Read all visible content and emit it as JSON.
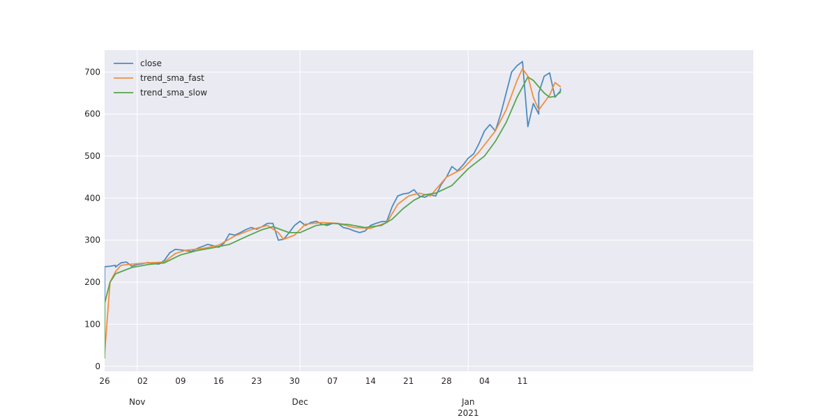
{
  "chart_data": {
    "type": "line",
    "title": "",
    "xlabel": "",
    "ylabel": "",
    "ylim": [
      -12,
      752
    ],
    "grid": true,
    "legend_position": "top-left",
    "x_range": [
      "2020-10-26",
      "2021-01-15"
    ],
    "y_ticks": [
      0,
      100,
      200,
      300,
      400,
      500,
      600,
      700
    ],
    "x_ticks": [
      {
        "date": "2020-10-26",
        "label": "26"
      },
      {
        "date": "2020-11-02",
        "label": "02"
      },
      {
        "date": "2020-11-09",
        "label": "09"
      },
      {
        "date": "2020-11-16",
        "label": "16"
      },
      {
        "date": "2020-11-23",
        "label": "23"
      },
      {
        "date": "2020-11-30",
        "label": "30"
      },
      {
        "date": "2020-12-07",
        "label": "07"
      },
      {
        "date": "2020-12-14",
        "label": "14"
      },
      {
        "date": "2020-12-21",
        "label": "21"
      },
      {
        "date": "2020-12-28",
        "label": "28"
      },
      {
        "date": "2021-01-04",
        "label": "04"
      },
      {
        "date": "2021-01-11",
        "label": "11"
      }
    ],
    "x_major_ticks": [
      {
        "date": "2020-11-01",
        "label": "Nov",
        "sublabel": ""
      },
      {
        "date": "2020-12-01",
        "label": "Dec",
        "sublabel": ""
      },
      {
        "date": "2021-01-01",
        "label": "Jan",
        "sublabel": "2021"
      }
    ],
    "series": [
      {
        "name": "close",
        "color": "#4c8bbf",
        "points": [
          [
            "2020-10-26",
            30
          ],
          [
            "2020-10-26",
            237
          ],
          [
            "2020-10-27",
            238
          ],
          [
            "2020-10-28",
            240
          ],
          [
            "2020-10-28",
            236
          ],
          [
            "2020-10-29",
            246
          ],
          [
            "2020-10-30",
            248
          ],
          [
            "2020-10-31",
            238
          ],
          [
            "2020-11-01",
            242
          ],
          [
            "2020-11-02",
            244
          ],
          [
            "2020-11-03",
            247
          ],
          [
            "2020-11-04",
            244
          ],
          [
            "2020-11-05",
            243
          ],
          [
            "2020-11-06",
            252
          ],
          [
            "2020-11-07",
            270
          ],
          [
            "2020-11-08",
            278
          ],
          [
            "2020-11-09",
            277
          ],
          [
            "2020-11-10",
            275
          ],
          [
            "2020-11-11",
            273
          ],
          [
            "2020-11-12",
            280
          ],
          [
            "2020-11-13",
            285
          ],
          [
            "2020-11-14",
            290
          ],
          [
            "2020-11-15",
            287
          ],
          [
            "2020-11-16",
            283
          ],
          [
            "2020-11-17",
            293
          ],
          [
            "2020-11-18",
            315
          ],
          [
            "2020-11-19",
            312
          ],
          [
            "2020-11-20",
            318
          ],
          [
            "2020-11-21",
            325
          ],
          [
            "2020-11-22",
            330
          ],
          [
            "2020-11-23",
            326
          ],
          [
            "2020-11-24",
            332
          ],
          [
            "2020-11-25",
            340
          ],
          [
            "2020-11-26",
            340
          ],
          [
            "2020-11-27",
            300
          ],
          [
            "2020-11-28",
            302
          ],
          [
            "2020-11-29",
            318
          ],
          [
            "2020-11-30",
            335
          ],
          [
            "2020-12-01",
            345
          ],
          [
            "2020-12-02",
            335
          ],
          [
            "2020-12-03",
            342
          ],
          [
            "2020-12-04",
            345
          ],
          [
            "2020-12-05",
            338
          ],
          [
            "2020-12-06",
            335
          ],
          [
            "2020-12-07",
            340
          ],
          [
            "2020-12-08",
            340
          ],
          [
            "2020-12-09",
            330
          ],
          [
            "2020-12-10",
            327
          ],
          [
            "2020-12-11",
            322
          ],
          [
            "2020-12-12",
            318
          ],
          [
            "2020-12-13",
            322
          ],
          [
            "2020-12-14",
            335
          ],
          [
            "2020-12-15",
            340
          ],
          [
            "2020-12-16",
            344
          ],
          [
            "2020-12-17",
            345
          ],
          [
            "2020-12-18",
            380
          ],
          [
            "2020-12-19",
            405
          ],
          [
            "2020-12-20",
            410
          ],
          [
            "2020-12-21",
            412
          ],
          [
            "2020-12-22",
            420
          ],
          [
            "2020-12-23",
            405
          ],
          [
            "2020-12-24",
            402
          ],
          [
            "2020-12-25",
            408
          ],
          [
            "2020-12-26",
            405
          ],
          [
            "2020-12-27",
            432
          ],
          [
            "2020-12-28",
            450
          ],
          [
            "2020-12-29",
            475
          ],
          [
            "2020-12-30",
            465
          ],
          [
            "2020-12-31",
            478
          ],
          [
            "2021-01-01",
            495
          ],
          [
            "2021-01-02",
            505
          ],
          [
            "2021-01-03",
            530
          ],
          [
            "2021-01-04",
            560
          ],
          [
            "2021-01-05",
            575
          ],
          [
            "2021-01-06",
            560
          ],
          [
            "2021-01-07",
            600
          ],
          [
            "2021-01-08",
            650
          ],
          [
            "2021-01-09",
            700
          ],
          [
            "2021-01-10",
            715
          ],
          [
            "2021-01-11",
            725
          ],
          [
            "2021-01-12",
            570
          ],
          [
            "2021-01-13",
            625
          ],
          [
            "2021-01-14",
            600
          ],
          [
            "2021-01-14",
            650
          ],
          [
            "2021-01-15",
            690
          ],
          [
            "2021-01-16",
            698
          ],
          [
            "2021-01-17",
            640
          ],
          [
            "2021-01-18",
            655
          ],
          [
            "2021-01-18",
            660
          ]
        ]
      },
      {
        "name": "trend_sma_fast",
        "color": "#f28e3c",
        "points": [
          [
            "2020-10-26",
            30
          ],
          [
            "2020-10-27",
            200
          ],
          [
            "2020-10-28",
            225
          ],
          [
            "2020-10-29",
            240
          ],
          [
            "2020-10-31",
            243
          ],
          [
            "2020-11-03",
            246
          ],
          [
            "2020-11-06",
            248
          ],
          [
            "2020-11-08",
            268
          ],
          [
            "2020-11-10",
            276
          ],
          [
            "2020-11-13",
            280
          ],
          [
            "2020-11-16",
            288
          ],
          [
            "2020-11-19",
            310
          ],
          [
            "2020-11-22",
            325
          ],
          [
            "2020-11-25",
            335
          ],
          [
            "2020-11-27",
            318
          ],
          [
            "2020-11-28",
            302
          ],
          [
            "2020-11-30",
            312
          ],
          [
            "2020-12-02",
            338
          ],
          [
            "2020-12-05",
            342
          ],
          [
            "2020-12-08",
            340
          ],
          [
            "2020-12-11",
            330
          ],
          [
            "2020-12-14",
            328
          ],
          [
            "2020-12-17",
            342
          ],
          [
            "2020-12-19",
            385
          ],
          [
            "2020-12-21",
            405
          ],
          [
            "2020-12-23",
            412
          ],
          [
            "2020-12-25",
            405
          ],
          [
            "2020-12-28",
            450
          ],
          [
            "2020-12-31",
            470
          ],
          [
            "2021-01-03",
            510
          ],
          [
            "2021-01-06",
            560
          ],
          [
            "2021-01-08",
            610
          ],
          [
            "2021-01-10",
            680
          ],
          [
            "2021-01-11",
            708
          ],
          [
            "2021-01-12",
            690
          ],
          [
            "2021-01-13",
            640
          ],
          [
            "2021-01-14",
            610
          ],
          [
            "2021-01-16",
            645
          ],
          [
            "2021-01-17",
            675
          ],
          [
            "2021-01-18",
            665
          ]
        ]
      },
      {
        "name": "trend_sma_slow",
        "color": "#55a54b",
        "points": [
          [
            "2020-10-26",
            20
          ],
          [
            "2020-10-26",
            150
          ],
          [
            "2020-10-27",
            200
          ],
          [
            "2020-10-28",
            220
          ],
          [
            "2020-10-31",
            235
          ],
          [
            "2020-11-03",
            242
          ],
          [
            "2020-11-06",
            246
          ],
          [
            "2020-11-09",
            265
          ],
          [
            "2020-11-12",
            275
          ],
          [
            "2020-11-15",
            282
          ],
          [
            "2020-11-18",
            290
          ],
          [
            "2020-11-21",
            308
          ],
          [
            "2020-11-24",
            325
          ],
          [
            "2020-11-26",
            332
          ],
          [
            "2020-11-29",
            318
          ],
          [
            "2020-12-01",
            318
          ],
          [
            "2020-12-04",
            335
          ],
          [
            "2020-12-07",
            340
          ],
          [
            "2020-12-10",
            337
          ],
          [
            "2020-12-13",
            330
          ],
          [
            "2020-12-16",
            335
          ],
          [
            "2020-12-18",
            350
          ],
          [
            "2020-12-20",
            375
          ],
          [
            "2020-12-22",
            395
          ],
          [
            "2020-12-24",
            408
          ],
          [
            "2020-12-26",
            412
          ],
          [
            "2020-12-29",
            430
          ],
          [
            "2021-01-01",
            470
          ],
          [
            "2021-01-04",
            500
          ],
          [
            "2021-01-06",
            535
          ],
          [
            "2021-01-08",
            580
          ],
          [
            "2021-01-10",
            640
          ],
          [
            "2021-01-12",
            688
          ],
          [
            "2021-01-13",
            680
          ],
          [
            "2021-01-15",
            650
          ],
          [
            "2021-01-16",
            640
          ],
          [
            "2021-01-17",
            642
          ],
          [
            "2021-01-18",
            652
          ]
        ]
      }
    ]
  },
  "colors": {
    "plot_background": "#eaeaf2",
    "grid": "#ffffff"
  }
}
